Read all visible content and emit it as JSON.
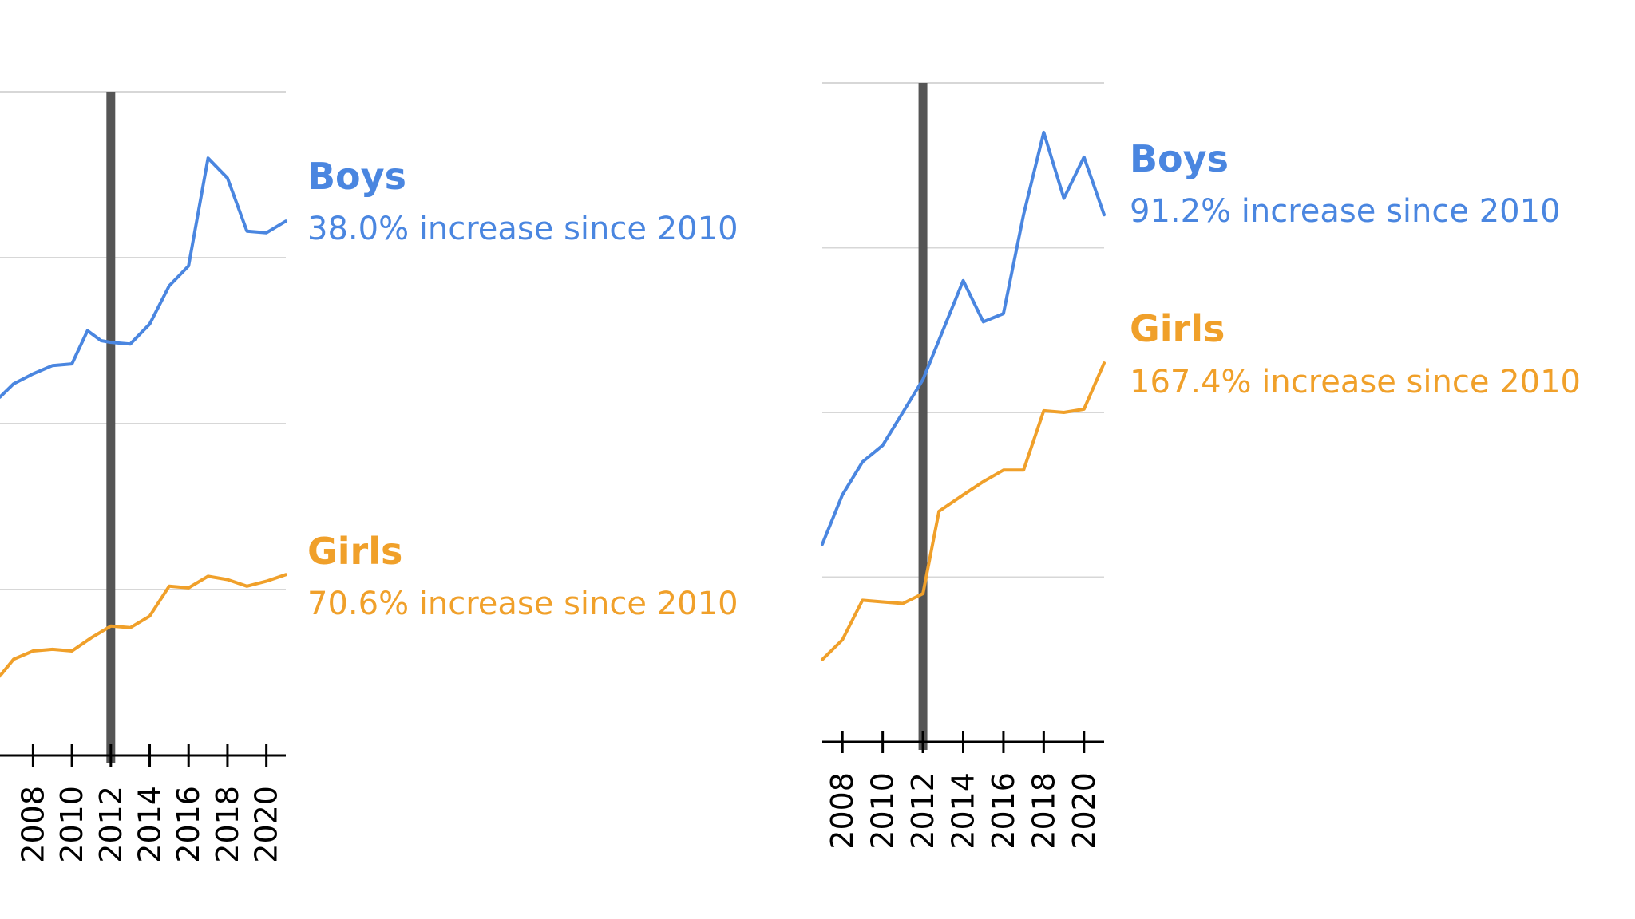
{
  "colors": {
    "boys": "#4a86e0",
    "girls": "#f0a02a",
    "grid": "#d7d7d7",
    "marker": "#555555",
    "axis": "#000000"
  },
  "chart_data": [
    {
      "type": "line",
      "title": "",
      "xlabel": "",
      "ylabel": "",
      "x_tick_labels": [
        "2008",
        "2010",
        "2012",
        "2014",
        "2016",
        "2018",
        "2020"
      ],
      "xlim": [
        2006.3,
        2021.0
      ],
      "ylim": [
        0,
        4
      ],
      "grid": true,
      "vertical_marker": 2012,
      "series": [
        {
          "name": "Boys",
          "annotation": "38.0% increase since 2010",
          "points": [
            [
              2006.3,
              2.16
            ],
            [
              2007.0,
              2.24
            ],
            [
              2008.0,
              2.3
            ],
            [
              2009.0,
              2.35
            ],
            [
              2010.0,
              2.36
            ],
            [
              2010.8,
              2.56
            ],
            [
              2011.5,
              2.5
            ],
            [
              2012.0,
              2.49
            ],
            [
              2013.0,
              2.48
            ],
            [
              2014.0,
              2.6
            ],
            [
              2015.0,
              2.83
            ],
            [
              2016.0,
              2.95
            ],
            [
              2017.0,
              3.6
            ],
            [
              2018.0,
              3.48
            ],
            [
              2019.0,
              3.16
            ],
            [
              2020.0,
              3.15
            ],
            [
              2021.0,
              3.22
            ]
          ]
        },
        {
          "name": "Girls",
          "annotation": "70.6% increase since 2010",
          "points": [
            [
              2006.3,
              0.48
            ],
            [
              2007.0,
              0.58
            ],
            [
              2008.0,
              0.63
            ],
            [
              2009.0,
              0.64
            ],
            [
              2010.0,
              0.63
            ],
            [
              2011.0,
              0.71
            ],
            [
              2012.0,
              0.78
            ],
            [
              2013.0,
              0.77
            ],
            [
              2014.0,
              0.84
            ],
            [
              2015.0,
              1.02
            ],
            [
              2016.0,
              1.01
            ],
            [
              2017.0,
              1.08
            ],
            [
              2018.0,
              1.06
            ],
            [
              2019.0,
              1.02
            ],
            [
              2020.0,
              1.05
            ],
            [
              2021.0,
              1.09
            ]
          ]
        }
      ]
    },
    {
      "type": "line",
      "title": "",
      "xlabel": "",
      "ylabel": "",
      "x_tick_labels": [
        "2008",
        "2010",
        "2012",
        "2014",
        "2016",
        "2018",
        "2020"
      ],
      "xlim": [
        2007.0,
        2021.0
      ],
      "ylim": [
        0,
        4
      ],
      "grid": true,
      "vertical_marker": 2012,
      "series": [
        {
          "name": "Boys",
          "annotation": "91.2% increase since 2010",
          "points": [
            [
              2007.0,
              1.2
            ],
            [
              2008.0,
              1.5
            ],
            [
              2009.0,
              1.7
            ],
            [
              2010.0,
              1.8
            ],
            [
              2011.0,
              2.0
            ],
            [
              2012.0,
              2.2
            ],
            [
              2013.0,
              2.5
            ],
            [
              2014.0,
              2.8
            ],
            [
              2015.0,
              2.55
            ],
            [
              2016.0,
              2.6
            ],
            [
              2017.0,
              3.2
            ],
            [
              2018.0,
              3.7
            ],
            [
              2019.0,
              3.3
            ],
            [
              2020.0,
              3.55
            ],
            [
              2021.0,
              3.2
            ]
          ]
        },
        {
          "name": "Girls",
          "annotation": "167.4% increase since 2010",
          "points": [
            [
              2007.0,
              0.5
            ],
            [
              2008.0,
              0.62
            ],
            [
              2009.0,
              0.86
            ],
            [
              2010.0,
              0.85
            ],
            [
              2011.0,
              0.84
            ],
            [
              2012.0,
              0.9
            ],
            [
              2012.8,
              1.4
            ],
            [
              2014.0,
              1.5
            ],
            [
              2015.0,
              1.58
            ],
            [
              2016.0,
              1.65
            ],
            [
              2017.0,
              1.65
            ],
            [
              2018.0,
              2.01
            ],
            [
              2019.0,
              2.0
            ],
            [
              2020.0,
              2.02
            ],
            [
              2021.0,
              2.3
            ]
          ]
        }
      ]
    }
  ]
}
